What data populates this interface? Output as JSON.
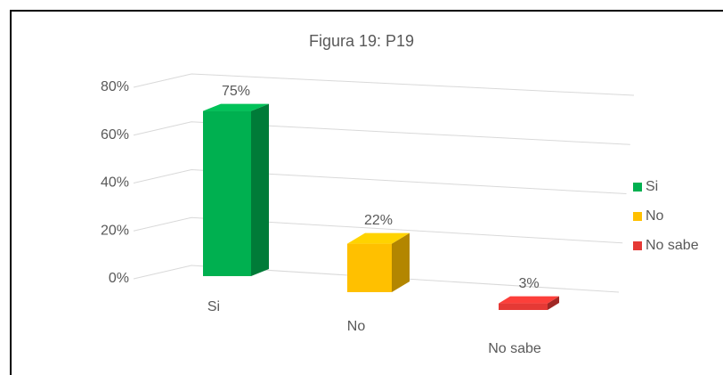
{
  "chart_data": {
    "type": "bar3d",
    "title": "Figura 19: P19",
    "categories": [
      "Si",
      "No",
      "No sabe"
    ],
    "values": [
      75,
      22,
      3
    ],
    "value_labels": [
      "75%",
      "22%",
      "3%"
    ],
    "colors": [
      "#00b050",
      "#ffc000",
      "#e53935"
    ],
    "ylim": [
      0,
      80
    ],
    "yticks": [
      {
        "value": 0,
        "label": "0%"
      },
      {
        "value": 20,
        "label": "20%"
      },
      {
        "value": 40,
        "label": "40%"
      },
      {
        "value": 60,
        "label": "60%"
      },
      {
        "value": 80,
        "label": "80%"
      }
    ],
    "grid": true,
    "legend": "right"
  }
}
